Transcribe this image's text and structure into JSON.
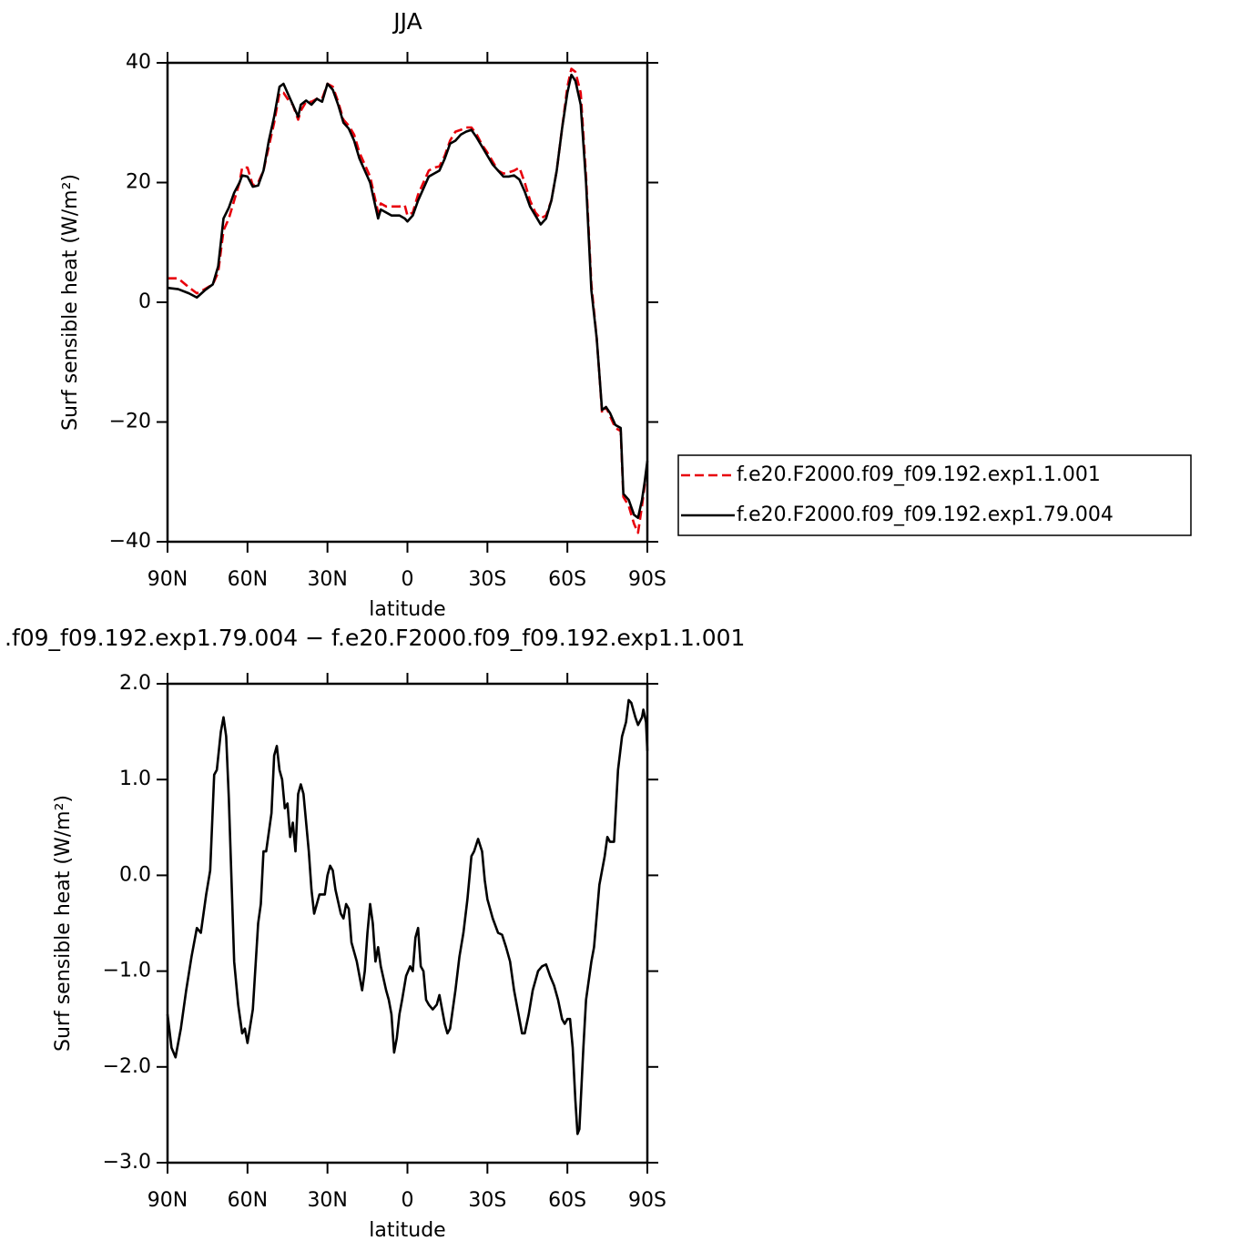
{
  "chart_data": [
    {
      "type": "line",
      "title": "JJA",
      "xlabel": "latitude",
      "ylabel": "Surf sensible heat (W/m²)",
      "xlim": [
        90,
        -90
      ],
      "ylim": [
        -40,
        40
      ],
      "xticks": [
        {
          "value": 90,
          "label": "90N"
        },
        {
          "value": 60,
          "label": "60N"
        },
        {
          "value": 30,
          "label": "30N"
        },
        0,
        {
          "value": -30,
          "label": "30S"
        },
        {
          "value": -60,
          "label": "60S"
        },
        {
          "value": -90,
          "label": "90S"
        }
      ],
      "yticks": [
        {
          "value": -40,
          "label": "−40"
        },
        {
          "value": -20,
          "label": "−20"
        },
        0,
        20,
        40
      ],
      "legend": "right",
      "x": [
        90,
        86,
        82,
        79,
        76,
        73,
        71,
        69,
        67,
        65,
        63,
        62,
        60,
        58,
        56,
        54,
        52,
        50,
        48,
        46.5,
        45,
        43,
        41,
        40,
        38,
        36,
        34,
        32,
        30,
        28,
        26,
        24,
        22,
        20,
        18,
        16,
        14,
        12,
        11,
        10,
        8,
        6,
        3,
        1,
        0,
        -2,
        -4,
        -6,
        -8,
        -10,
        -12,
        -14,
        -16,
        -18,
        -20,
        -22,
        -24,
        -26,
        -28,
        -30,
        -32,
        -34,
        -36,
        -38,
        -40,
        -42,
        -44,
        -46,
        -48,
        -50,
        -52,
        -54,
        -56,
        -58,
        -60,
        -61.5,
        -63,
        -65,
        -67,
        -69,
        -71,
        -72,
        -73,
        -74.5,
        -76,
        -78,
        -80,
        -81,
        -83,
        -85,
        -86.5,
        -88,
        -89,
        -90
      ],
      "series": [
        {
          "name": "f.e20.F2000.f09_f09.192.exp1.1.001",
          "color": "#e8000b",
          "dashed": true,
          "values": [
            4,
            4,
            2.5,
            1.5,
            2.2,
            3,
            5,
            12,
            14,
            17,
            20,
            22.5,
            22.5,
            19.5,
            20,
            22,
            26,
            30,
            35,
            35,
            34,
            33,
            30.5,
            32,
            33.5,
            33.5,
            34,
            34,
            36.5,
            36,
            33.5,
            30.5,
            29.5,
            28,
            25,
            23,
            21,
            17,
            15,
            16.5,
            16,
            16,
            16,
            16.2,
            14.5,
            15,
            18,
            20,
            22,
            22.5,
            22.7,
            24.5,
            27,
            28.5,
            28.8,
            29.2,
            29.2,
            28,
            26.3,
            25,
            23.5,
            22,
            21.5,
            21.7,
            22,
            22.5,
            20,
            17,
            15,
            14,
            14.5,
            17,
            22,
            29,
            36,
            39,
            38.5,
            35,
            21,
            3,
            -6,
            -12,
            -18.5,
            -17.5,
            -19,
            -21,
            -21.5,
            -32.5,
            -34,
            -37,
            -38.5,
            -34,
            -30.5,
            -28
          ]
        },
        {
          "name": "f.e20.F2000.f09_f09.192.exp1.79.004",
          "color": "#000000",
          "dashed": false,
          "values": [
            2.4,
            2.2,
            1.5,
            0.8,
            2.0,
            3.0,
            6,
            14,
            15.8,
            18.3,
            20,
            21.2,
            21,
            19.3,
            19.5,
            22,
            27,
            31,
            36,
            36.5,
            35,
            33,
            31,
            33,
            33.7,
            33,
            34,
            33.5,
            36.5,
            35.5,
            33,
            30,
            29,
            27,
            24,
            22,
            20,
            16,
            14,
            15.5,
            15,
            14.5,
            14.5,
            14,
            13.5,
            14.5,
            17,
            19,
            21,
            21.5,
            22,
            24,
            26.5,
            27,
            28,
            28.5,
            28.8,
            27.5,
            26,
            24.5,
            23,
            22,
            21,
            21,
            21.2,
            20.5,
            18.5,
            16,
            14.5,
            13,
            14,
            17,
            22,
            29,
            35,
            38,
            37,
            33,
            20,
            2,
            -6,
            -12,
            -18,
            -17.5,
            -18.5,
            -20.5,
            -21,
            -32,
            -33,
            -35.5,
            -36,
            -33,
            -30,
            -26.5
          ]
        }
      ]
    },
    {
      "type": "line",
      "title": ".f09_f09.192.exp1.79.004 − f.e20.F2000.f09_f09.192.exp1.1.001",
      "xlabel": "latitude",
      "ylabel": "Surf sensible heat (W/m²)",
      "xlim": [
        90,
        -90
      ],
      "ylim": [
        -3,
        2
      ],
      "xticks": [
        {
          "value": 90,
          "label": "90N"
        },
        {
          "value": 60,
          "label": "60N"
        },
        {
          "value": 30,
          "label": "30N"
        },
        0,
        {
          "value": -30,
          "label": "30S"
        },
        {
          "value": -60,
          "label": "60S"
        },
        {
          "value": -90,
          "label": "90S"
        }
      ],
      "yticks": [
        {
          "value": -3,
          "label": "−3.0"
        },
        {
          "value": -2,
          "label": "−2.0"
        },
        {
          "value": -1,
          "label": "−1.0"
        },
        {
          "value": 0,
          "label": "0.0"
        },
        {
          "value": 1,
          "label": "1.0"
        },
        {
          "value": 2,
          "label": "2.0"
        }
      ],
      "color": "#000000",
      "x": [
        90,
        88.5,
        87,
        85,
        83,
        81,
        79,
        77.5,
        75.5,
        74,
        72.5,
        71.5,
        70,
        69,
        68,
        67,
        65,
        63.5,
        62,
        61,
        60,
        58,
        56,
        55,
        54,
        53,
        51,
        50,
        49,
        48,
        47,
        46,
        45,
        44,
        43,
        42,
        41,
        40,
        39,
        37,
        36,
        35,
        33,
        31,
        30,
        29,
        28,
        27,
        25,
        24,
        23,
        22,
        21,
        19,
        17,
        16,
        15,
        14,
        13,
        12,
        11,
        10,
        8,
        7,
        6,
        5,
        4,
        3,
        2,
        0.5,
        -1,
        -2,
        -3,
        -4,
        -5,
        -6,
        -7,
        -8,
        -9.5,
        -11,
        -12,
        -14,
        -15,
        -16,
        -18,
        -19.5,
        -21,
        -22.5,
        -24,
        -25,
        -26.5,
        -28,
        -29,
        -30,
        -32,
        -34,
        -35.5,
        -37,
        -38.5,
        -40,
        -42,
        -43,
        -44,
        -45.5,
        -47,
        -49,
        -50.5,
        -52,
        -53.5,
        -55,
        -56.5,
        -58,
        -59,
        -60,
        -61,
        -62,
        -63,
        -63.8,
        -64.5,
        -66,
        -67,
        -69,
        -70,
        -72,
        -74,
        -75,
        -76,
        -77.5,
        -79,
        -80.5,
        -82,
        -83,
        -84,
        -85.5,
        -86.5,
        -88,
        -88.5,
        -89.5,
        -90
      ],
      "values": [
        -1.45,
        -1.8,
        -1.9,
        -1.6,
        -1.2,
        -0.85,
        -0.55,
        -0.6,
        -0.2,
        0.05,
        1.05,
        1.1,
        1.5,
        1.65,
        1.45,
        0.8,
        -0.9,
        -1.35,
        -1.65,
        -1.6,
        -1.75,
        -1.4,
        -0.5,
        -0.3,
        0.25,
        0.25,
        0.65,
        1.25,
        1.35,
        1.1,
        1.0,
        0.7,
        0.75,
        0.4,
        0.55,
        0.25,
        0.85,
        0.95,
        0.85,
        0.25,
        -0.15,
        -0.4,
        -0.2,
        -0.2,
        0,
        0.1,
        0.05,
        -0.15,
        -0.4,
        -0.45,
        -0.3,
        -0.35,
        -0.7,
        -0.9,
        -1.2,
        -1.0,
        -0.6,
        -0.3,
        -0.5,
        -0.9,
        -0.75,
        -0.95,
        -1.2,
        -1.3,
        -1.45,
        -1.85,
        -1.7,
        -1.45,
        -1.3,
        -1.05,
        -0.95,
        -1.0,
        -0.65,
        -0.55,
        -0.95,
        -1.0,
        -1.3,
        -1.35,
        -1.4,
        -1.35,
        -1.25,
        -1.55,
        -1.65,
        -1.6,
        -1.2,
        -0.85,
        -0.6,
        -0.25,
        0.2,
        0.25,
        0.38,
        0.25,
        -0.05,
        -0.25,
        -0.45,
        -0.6,
        -0.62,
        -0.75,
        -0.9,
        -1.2,
        -1.5,
        -1.65,
        -1.65,
        -1.45,
        -1.2,
        -1.0,
        -0.95,
        -0.93,
        -1.05,
        -1.15,
        -1.3,
        -1.5,
        -1.55,
        -1.5,
        -1.5,
        -1.8,
        -2.35,
        -2.7,
        -2.65,
        -1.8,
        -1.3,
        -0.9,
        -0.75,
        -0.1,
        0.2,
        0.4,
        0.35,
        0.35,
        1.1,
        1.45,
        1.6,
        1.83,
        1.8,
        1.65,
        1.57,
        1.65,
        1.73,
        1.6,
        1.3
      ]
    }
  ]
}
